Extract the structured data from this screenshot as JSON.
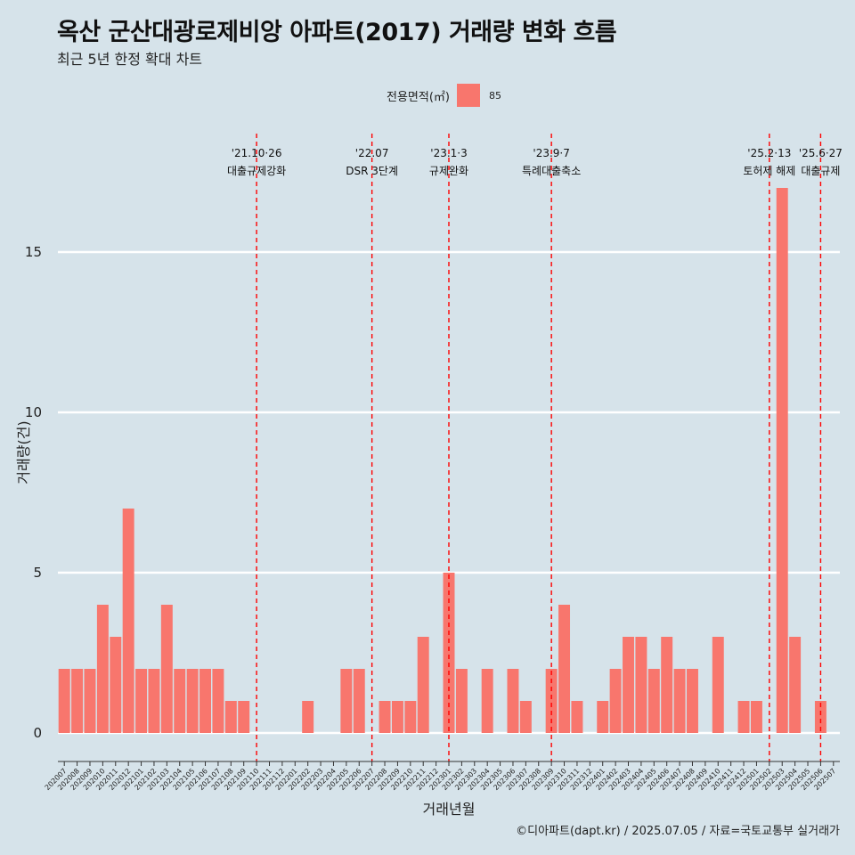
{
  "header": {
    "title": "옥산 군산대광로제비앙 아파트(2017) 거래량 변화 흐름",
    "subtitle": "최근 5년 한정 확대 차트"
  },
  "legend": {
    "title": "전용면적(㎡)",
    "label": "85",
    "color": "#f8766d"
  },
  "caption": "©디아파트(dapt.kr) / 2025.07.05 / 자료=국토교통부 실거래가",
  "chart_data": {
    "type": "bar",
    "xlabel": "거래년월",
    "ylabel": "거래량(건)",
    "ylim": [
      0,
      17.5
    ],
    "yticks": [
      0,
      5,
      10,
      15
    ],
    "grid": true,
    "legend_position": "top",
    "bar_color": "#f8766d",
    "categories": [
      "202007",
      "202008",
      "202009",
      "202010",
      "202011",
      "202012",
      "202101",
      "202102",
      "202103",
      "202104",
      "202105",
      "202106",
      "202107",
      "202108",
      "202109",
      "202110",
      "202111",
      "202112",
      "202201",
      "202202",
      "202203",
      "202204",
      "202205",
      "202206",
      "202207",
      "202208",
      "202209",
      "202210",
      "202211",
      "202212",
      "202301",
      "202302",
      "202303",
      "202304",
      "202305",
      "202306",
      "202307",
      "202308",
      "202309",
      "202310",
      "202311",
      "202312",
      "202401",
      "202402",
      "202403",
      "202404",
      "202405",
      "202406",
      "202407",
      "202408",
      "202409",
      "202410",
      "202411",
      "202412",
      "202501",
      "202502",
      "202503",
      "202504",
      "202505",
      "202506",
      "202507"
    ],
    "series": [
      {
        "name": "85",
        "values": [
          2,
          2,
          2,
          4,
          3,
          7,
          2,
          2,
          4,
          2,
          2,
          2,
          2,
          1,
          1,
          0,
          0,
          0,
          0,
          1,
          0,
          0,
          2,
          2,
          0,
          1,
          1,
          1,
          3,
          0,
          5,
          2,
          0,
          2,
          0,
          2,
          1,
          0,
          2,
          4,
          1,
          0,
          1,
          2,
          3,
          3,
          2,
          3,
          2,
          2,
          0,
          3,
          0,
          1,
          1,
          0,
          17,
          3,
          0,
          1,
          0
        ]
      }
    ],
    "events": [
      {
        "at": "202110",
        "date": "'21.10·26",
        "label": "대출규제강화"
      },
      {
        "at": "202207",
        "date": "'22.07",
        "label": "DSR 3단계"
      },
      {
        "at": "202301",
        "date": "'23.1·3",
        "label": "규제완화"
      },
      {
        "at": "202309",
        "date": "'23.9·7",
        "label": "특례대출축소"
      },
      {
        "at": "202502",
        "date": "'25.2·13",
        "label": "토허제 해제"
      },
      {
        "at": "202506",
        "date": "'25.6·27",
        "label": "대출규제"
      }
    ]
  }
}
